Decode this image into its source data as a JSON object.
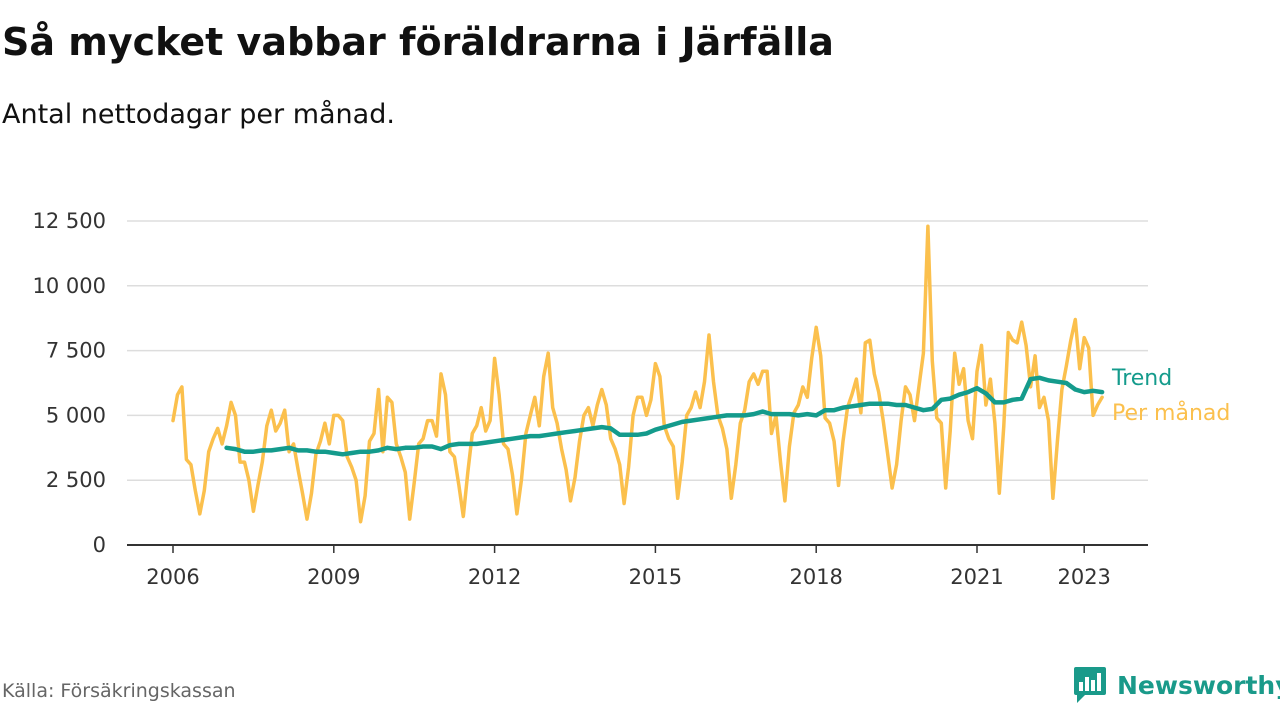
{
  "title": "Så mycket vabbar föräldrarna i Järfälla",
  "subtitle": "Antal nettodagar per månad.",
  "source": "Källa: Försäkringskassan",
  "brand": {
    "name": "Newsworthy",
    "icon": "bar-chart-logo-icon"
  },
  "colors": {
    "monthly": "#fbc04d",
    "trend": "#149b8c",
    "grid": "#dddddd",
    "axis": "#333333"
  },
  "chart_data": {
    "type": "line",
    "xlim": [
      2006,
      2024
    ],
    "ylim": [
      0,
      12500
    ],
    "grid": true,
    "legend": "right-end labels",
    "x_ticks": [
      {
        "value": 2006,
        "label": "2006"
      },
      {
        "value": 2009,
        "label": "2009"
      },
      {
        "value": 2012,
        "label": "2012"
      },
      {
        "value": 2015,
        "label": "2015"
      },
      {
        "value": 2018,
        "label": "2018"
      },
      {
        "value": 2021,
        "label": "2021"
      },
      {
        "value": 2023,
        "label": "2023"
      }
    ],
    "y_ticks": [
      {
        "value": 0,
        "label": "0"
      },
      {
        "value": 2500,
        "label": "2 500"
      },
      {
        "value": 5000,
        "label": "5 000"
      },
      {
        "value": 7500,
        "label": "7 500"
      },
      {
        "value": 10000,
        "label": "10 000"
      },
      {
        "value": 12500,
        "label": "12 500"
      }
    ],
    "series": [
      {
        "name": "Per månad",
        "x": [
          "2006-01",
          "2006-02",
          "2006-03",
          "2006-04",
          "2006-05",
          "2006-06",
          "2006-07",
          "2006-08",
          "2006-09",
          "2006-10",
          "2006-11",
          "2006-12",
          "2007-01",
          "2007-02",
          "2007-03",
          "2007-04",
          "2007-05",
          "2007-06",
          "2007-07",
          "2007-08",
          "2007-09",
          "2007-10",
          "2007-11",
          "2007-12",
          "2008-01",
          "2008-02",
          "2008-03",
          "2008-04",
          "2008-05",
          "2008-06",
          "2008-07",
          "2008-08",
          "2008-09",
          "2008-10",
          "2008-11",
          "2008-12",
          "2009-01",
          "2009-02",
          "2009-03",
          "2009-04",
          "2009-05",
          "2009-06",
          "2009-07",
          "2009-08",
          "2009-09",
          "2009-10",
          "2009-11",
          "2009-12",
          "2010-01",
          "2010-02",
          "2010-03",
          "2010-04",
          "2010-05",
          "2010-06",
          "2010-07",
          "2010-08",
          "2010-09",
          "2010-10",
          "2010-11",
          "2010-12",
          "2011-01",
          "2011-02",
          "2011-03",
          "2011-04",
          "2011-05",
          "2011-06",
          "2011-07",
          "2011-08",
          "2011-09",
          "2011-10",
          "2011-11",
          "2011-12",
          "2012-01",
          "2012-02",
          "2012-03",
          "2012-04",
          "2012-05",
          "2012-06",
          "2012-07",
          "2012-08",
          "2012-09",
          "2012-10",
          "2012-11",
          "2012-12",
          "2013-01",
          "2013-02",
          "2013-03",
          "2013-04",
          "2013-05",
          "2013-06",
          "2013-07",
          "2013-08",
          "2013-09",
          "2013-10",
          "2013-11",
          "2013-12",
          "2014-01",
          "2014-02",
          "2014-03",
          "2014-04",
          "2014-05",
          "2014-06",
          "2014-07",
          "2014-08",
          "2014-09",
          "2014-10",
          "2014-11",
          "2014-12",
          "2015-01",
          "2015-02",
          "2015-03",
          "2015-04",
          "2015-05",
          "2015-06",
          "2015-07",
          "2015-08",
          "2015-09",
          "2015-10",
          "2015-11",
          "2015-12",
          "2016-01",
          "2016-02",
          "2016-03",
          "2016-04",
          "2016-05",
          "2016-06",
          "2016-07",
          "2016-08",
          "2016-09",
          "2016-10",
          "2016-11",
          "2016-12",
          "2017-01",
          "2017-02",
          "2017-03",
          "2017-04",
          "2017-05",
          "2017-06",
          "2017-07",
          "2017-08",
          "2017-09",
          "2017-10",
          "2017-11",
          "2017-12",
          "2018-01",
          "2018-02",
          "2018-03",
          "2018-04",
          "2018-05",
          "2018-06",
          "2018-07",
          "2018-08",
          "2018-09",
          "2018-10",
          "2018-11",
          "2018-12",
          "2019-01",
          "2019-02",
          "2019-03",
          "2019-04",
          "2019-05",
          "2019-06",
          "2019-07",
          "2019-08",
          "2019-09",
          "2019-10",
          "2019-11",
          "2019-12",
          "2020-01",
          "2020-02",
          "2020-03",
          "2020-04",
          "2020-05",
          "2020-06",
          "2020-07",
          "2020-08",
          "2020-09",
          "2020-10",
          "2020-11",
          "2020-12",
          "2021-01",
          "2021-02",
          "2021-03",
          "2021-04",
          "2021-05",
          "2021-06",
          "2021-07",
          "2021-08",
          "2021-09",
          "2021-10",
          "2021-11",
          "2021-12",
          "2022-01",
          "2022-02",
          "2022-03",
          "2022-04",
          "2022-05",
          "2022-06",
          "2022-07",
          "2022-08",
          "2022-09",
          "2022-10",
          "2022-11",
          "2022-12",
          "2023-01",
          "2023-02",
          "2023-03",
          "2023-04",
          "2023-05"
        ],
        "values": [
          4800,
          5800,
          6100,
          3300,
          3100,
          2100,
          1200,
          2100,
          3600,
          4100,
          4500,
          3900,
          4600,
          5500,
          5000,
          3200,
          3200,
          2500,
          1300,
          2300,
          3200,
          4600,
          5200,
          4400,
          4700,
          5200,
          3600,
          3900,
          2900,
          2000,
          1000,
          2000,
          3500,
          4000,
          4700,
          3900,
          5000,
          5000,
          4800,
          3400,
          3000,
          2500,
          900,
          1900,
          4000,
          4300,
          6000,
          3600,
          5700,
          5500,
          3900,
          3400,
          2800,
          1000,
          2400,
          3900,
          4100,
          4800,
          4800,
          4200,
          6600,
          5800,
          3600,
          3400,
          2300,
          1100,
          2800,
          4300,
          4600,
          5300,
          4400,
          4800,
          7200,
          5800,
          3900,
          3700,
          2700,
          1200,
          2500,
          4300,
          5000,
          5700,
          4600,
          6500,
          7400,
          5300,
          4700,
          3700,
          2900,
          1700,
          2600,
          4000,
          5000,
          5300,
          4600,
          5400,
          6000,
          5400,
          4100,
          3700,
          3100,
          1600,
          3000,
          5000,
          5700,
          5700,
          5000,
          5600,
          7000,
          6500,
          4600,
          4100,
          3800,
          1800,
          3200,
          5000,
          5300,
          5900,
          5300,
          6300,
          8100,
          6300,
          5000,
          4500,
          3700,
          1800,
          3100,
          4700,
          5200,
          6300,
          6600,
          6200,
          6700,
          6700,
          4300,
          5000,
          3200,
          1700,
          3800,
          5100,
          5400,
          6100,
          5700,
          7200,
          8400,
          7300,
          4900,
          4700,
          4000,
          2300,
          4000,
          5300,
          5800,
          6400,
          5100,
          7800,
          7900,
          6600,
          5900,
          4800,
          3500,
          2200,
          3100,
          4800,
          6100,
          5800,
          4800,
          6100,
          7400,
          12300,
          7100,
          4900,
          4700,
          2200,
          4400,
          7400,
          6200,
          6800,
          4800,
          4100,
          6700,
          7700,
          5400,
          6400,
          4700,
          2000,
          4600,
          8200,
          7900,
          7800,
          8600,
          7700,
          6100,
          7300,
          5300,
          5700,
          4800,
          1800,
          4000,
          6000,
          6900,
          7900,
          8700,
          6800,
          8000,
          7600,
          5000,
          5400,
          5700
        ]
      },
      {
        "name": "Trend",
        "x": [
          "2007-01",
          "2007-03",
          "2007-05",
          "2007-07",
          "2007-09",
          "2007-11",
          "2008-01",
          "2008-03",
          "2008-05",
          "2008-07",
          "2008-09",
          "2008-11",
          "2009-01",
          "2009-03",
          "2009-05",
          "2009-07",
          "2009-09",
          "2009-11",
          "2010-01",
          "2010-03",
          "2010-05",
          "2010-07",
          "2010-09",
          "2010-11",
          "2011-01",
          "2011-03",
          "2011-05",
          "2011-07",
          "2011-09",
          "2011-11",
          "2012-01",
          "2012-03",
          "2012-05",
          "2012-07",
          "2012-09",
          "2012-11",
          "2013-01",
          "2013-03",
          "2013-05",
          "2013-07",
          "2013-09",
          "2013-11",
          "2014-01",
          "2014-03",
          "2014-05",
          "2014-07",
          "2014-09",
          "2014-11",
          "2015-01",
          "2015-03",
          "2015-05",
          "2015-07",
          "2015-09",
          "2015-11",
          "2016-01",
          "2016-03",
          "2016-05",
          "2016-07",
          "2016-09",
          "2016-11",
          "2017-01",
          "2017-03",
          "2017-05",
          "2017-07",
          "2017-09",
          "2017-11",
          "2018-01",
          "2018-03",
          "2018-05",
          "2018-07",
          "2018-09",
          "2018-11",
          "2019-01",
          "2019-03",
          "2019-05",
          "2019-07",
          "2019-09",
          "2019-11",
          "2020-01",
          "2020-03",
          "2020-05",
          "2020-07",
          "2020-09",
          "2020-11",
          "2021-01",
          "2021-03",
          "2021-05",
          "2021-07",
          "2021-09",
          "2021-11",
          "2022-01",
          "2022-03",
          "2022-05",
          "2022-07",
          "2022-09",
          "2022-11",
          "2023-01",
          "2023-03",
          "2023-05"
        ],
        "values": [
          3750,
          3700,
          3600,
          3600,
          3650,
          3650,
          3700,
          3750,
          3650,
          3650,
          3600,
          3600,
          3550,
          3500,
          3550,
          3600,
          3600,
          3650,
          3750,
          3700,
          3750,
          3750,
          3800,
          3800,
          3700,
          3850,
          3900,
          3900,
          3900,
          3950,
          4000,
          4050,
          4100,
          4150,
          4200,
          4200,
          4250,
          4300,
          4350,
          4400,
          4450,
          4500,
          4550,
          4500,
          4250,
          4250,
          4250,
          4300,
          4450,
          4550,
          4650,
          4750,
          4800,
          4850,
          4900,
          4950,
          5000,
          5000,
          5000,
          5050,
          5150,
          5050,
          5050,
          5050,
          5000,
          5050,
          5000,
          5200,
          5200,
          5300,
          5350,
          5400,
          5450,
          5450,
          5450,
          5400,
          5400,
          5300,
          5200,
          5250,
          5600,
          5650,
          5800,
          5900,
          6050,
          5850,
          5500,
          5500,
          5600,
          5650,
          6400,
          6450,
          6350,
          6300,
          6250,
          6000,
          5900,
          5950,
          5900
        ]
      }
    ]
  }
}
